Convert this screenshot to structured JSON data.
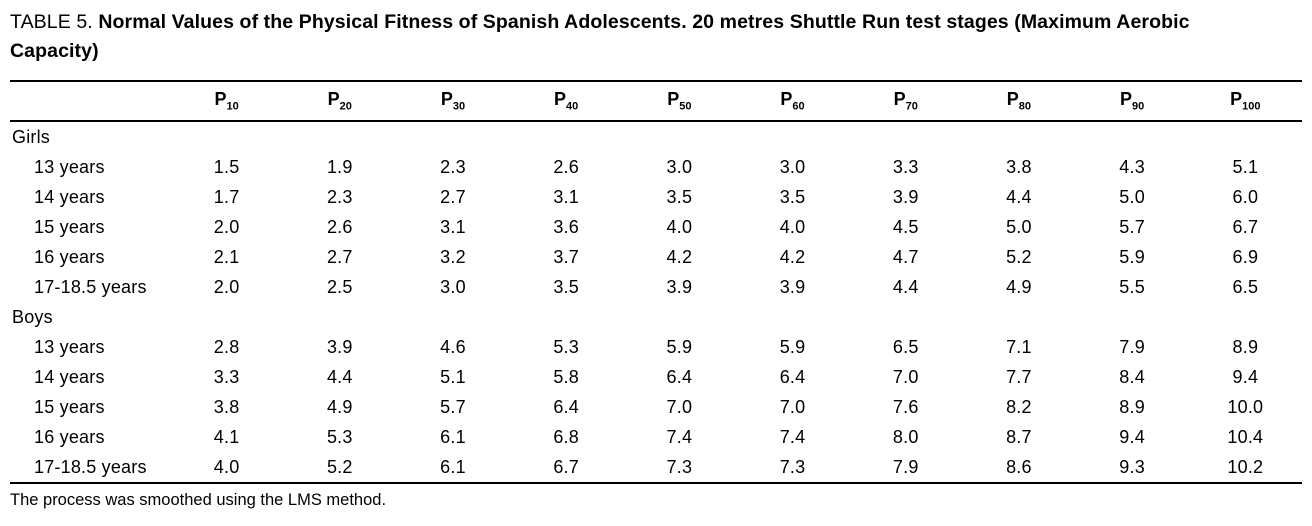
{
  "table": {
    "label": "TABLE 5.",
    "title": "Normal Values of the Physical Fitness of Spanish Adolescents. 20 metres Shuttle Run test stages (Maximum Aerobic Capacity)",
    "footnote": "The process was smoothed using the LMS method."
  },
  "chart_data": {
    "type": "table",
    "column_header_base": "P",
    "column_subscripts": [
      "10",
      "20",
      "30",
      "40",
      "50",
      "60",
      "70",
      "80",
      "90",
      "100"
    ],
    "groups": [
      {
        "label": "Girls",
        "rows": [
          {
            "label": "13 years",
            "values": [
              "1.5",
              "1.9",
              "2.3",
              "2.6",
              "3.0",
              "3.0",
              "3.3",
              "3.8",
              "4.3",
              "5.1"
            ]
          },
          {
            "label": "14 years",
            "values": [
              "1.7",
              "2.3",
              "2.7",
              "3.1",
              "3.5",
              "3.5",
              "3.9",
              "4.4",
              "5.0",
              "6.0"
            ]
          },
          {
            "label": "15 years",
            "values": [
              "2.0",
              "2.6",
              "3.1",
              "3.6",
              "4.0",
              "4.0",
              "4.5",
              "5.0",
              "5.7",
              "6.7"
            ]
          },
          {
            "label": "16 years",
            "values": [
              "2.1",
              "2.7",
              "3.2",
              "3.7",
              "4.2",
              "4.2",
              "4.7",
              "5.2",
              "5.9",
              "6.9"
            ]
          },
          {
            "label": "17-18.5 years",
            "values": [
              "2.0",
              "2.5",
              "3.0",
              "3.5",
              "3.9",
              "3.9",
              "4.4",
              "4.9",
              "5.5",
              "6.5"
            ]
          }
        ]
      },
      {
        "label": "Boys",
        "rows": [
          {
            "label": "13 years",
            "values": [
              "2.8",
              "3.9",
              "4.6",
              "5.3",
              "5.9",
              "5.9",
              "6.5",
              "7.1",
              "7.9",
              "8.9"
            ]
          },
          {
            "label": "14 years",
            "values": [
              "3.3",
              "4.4",
              "5.1",
              "5.8",
              "6.4",
              "6.4",
              "7.0",
              "7.7",
              "8.4",
              "9.4"
            ]
          },
          {
            "label": "15 years",
            "values": [
              "3.8",
              "4.9",
              "5.7",
              "6.4",
              "7.0",
              "7.0",
              "7.6",
              "8.2",
              "8.9",
              "10.0"
            ]
          },
          {
            "label": "16 years",
            "values": [
              "4.1",
              "5.3",
              "6.1",
              "6.8",
              "7.4",
              "7.4",
              "8.0",
              "8.7",
              "9.4",
              "10.4"
            ]
          },
          {
            "label": "17-18.5 years",
            "values": [
              "4.0",
              "5.2",
              "6.1",
              "6.7",
              "7.3",
              "7.3",
              "7.9",
              "8.6",
              "9.3",
              "10.2"
            ]
          }
        ]
      }
    ]
  }
}
